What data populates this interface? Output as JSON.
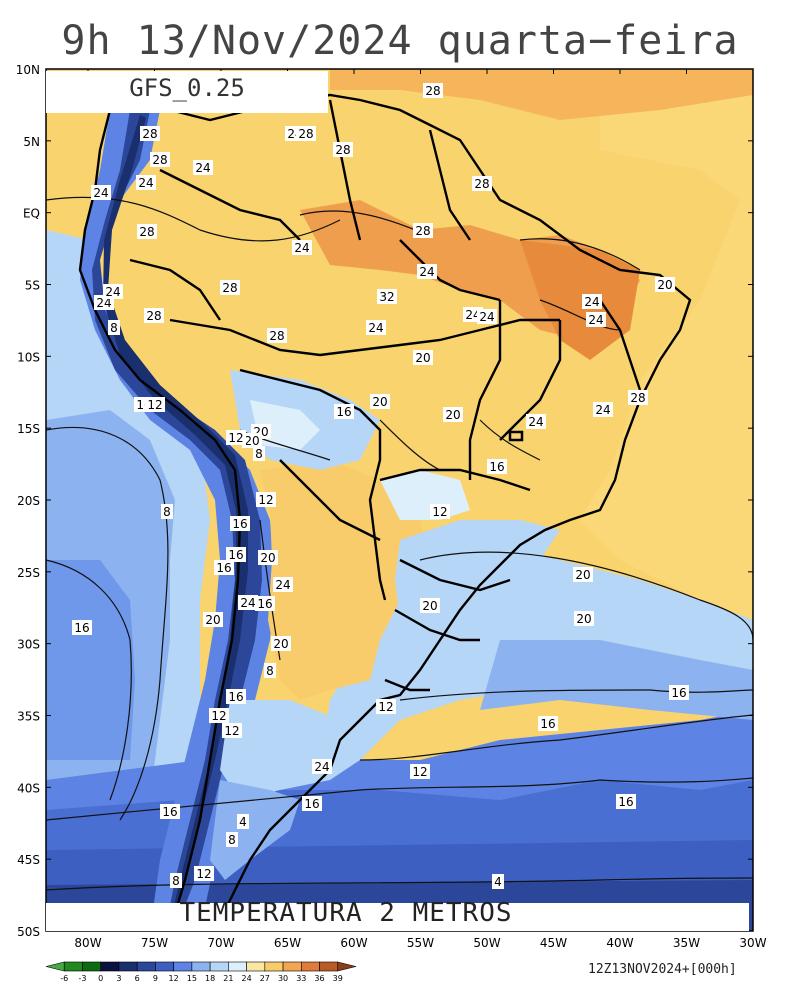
{
  "title": "9h 13/Nov/2024 quarta−feira",
  "model": "GFS_0.25",
  "variable": "TEMPERATURA 2 METROS",
  "run_info": "12Z13NOV2024+[000h]",
  "lat_labels": [
    "10N",
    "5N",
    "EQ",
    "5S",
    "10S",
    "15S",
    "20S",
    "25S",
    "30S",
    "35S",
    "40S",
    "45S",
    "50S"
  ],
  "lon_labels": [
    "80W",
    "75W",
    "70W",
    "65W",
    "60W",
    "55W",
    "50W",
    "45W",
    "40W",
    "35W",
    "30W"
  ],
  "colorbar": {
    "labels": [
      "-6",
      "-3",
      "0",
      "3",
      "6",
      "9",
      "12",
      "15",
      "18",
      "21",
      "24",
      "27",
      "30",
      "33",
      "36",
      "39"
    ],
    "colors": [
      "#44aa44",
      "#1f8a1f",
      "#0d6b12",
      "#0b1240",
      "#1a2f6e",
      "#2c4799",
      "#3d5fc2",
      "#5d84e4",
      "#8cb3ef",
      "#b6d6f7",
      "#ddeffb",
      "#fbe6a2",
      "#f9cc6b",
      "#f3a552",
      "#e07c3a",
      "#b85b27",
      "#8a3e18"
    ]
  },
  "contour_labels": [
    "28",
    "24",
    "28",
    "28",
    "28",
    "24",
    "28",
    "28",
    "24",
    "24",
    "28",
    "24",
    "28",
    "24",
    "32",
    "28",
    "28",
    "24",
    "24",
    "28",
    "24",
    "24",
    "24",
    "20",
    "24",
    "24",
    "20",
    "24",
    "28",
    "24",
    "20",
    "20",
    "16",
    "20",
    "20",
    "16",
    "12",
    "8",
    "12",
    "8",
    "12",
    "16",
    "8",
    "16",
    "20",
    "16",
    "16",
    "24",
    "24",
    "20",
    "8",
    "16",
    "20",
    "16",
    "12",
    "12",
    "16",
    "4",
    "8",
    "8",
    "12",
    "12",
    "16",
    "16",
    "16",
    "20",
    "20",
    "20",
    "12",
    "24",
    "16",
    "12",
    "16",
    "4"
  ],
  "colors": {
    "hot": "#f9cc6b",
    "warm": "#f3a552",
    "very_hot": "#e07c3a",
    "mild": "#fbe6a2",
    "cool": "#b6d6f7",
    "cold": "#5d84e4",
    "very_cold": "#2c4799",
    "deep_cold": "#1a2f6e"
  }
}
